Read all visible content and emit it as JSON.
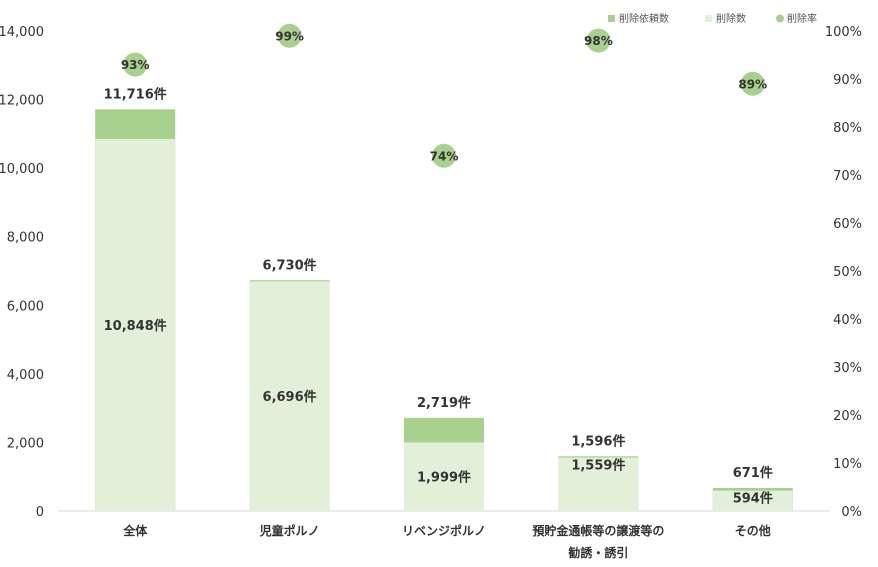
{
  "colors": {
    "requested": "#a9d18e",
    "deleted": "#e2f0d9",
    "rate": "#a9d18e",
    "axis": "#d9d9d9",
    "text": "#333333"
  },
  "chart_data": {
    "type": "bar",
    "categories": [
      {
        "lines": [
          "全体"
        ]
      },
      {
        "lines": [
          "児童ポルノ"
        ]
      },
      {
        "lines": [
          "リベンジポルノ"
        ]
      },
      {
        "lines": [
          "預貯金通帳等の譲渡等の",
          "勧誘・誘引"
        ]
      },
      {
        "lines": [
          "その他"
        ]
      }
    ],
    "series": [
      {
        "name": "削除依頼数",
        "axis": "left",
        "values": [
          11716,
          6730,
          2719,
          1596,
          671
        ],
        "labels": [
          "11,716件",
          "6,730件",
          "2,719件",
          "1,596件",
          "671件"
        ]
      },
      {
        "name": "削除数",
        "axis": "left",
        "values": [
          10848,
          6696,
          1999,
          1559,
          594
        ],
        "labels": [
          "10,848件",
          "6,696件",
          "1,999件",
          "1,559件",
          "594件"
        ]
      },
      {
        "name": "削除率",
        "axis": "right",
        "values": [
          93,
          99,
          74,
          98,
          89
        ],
        "labels": [
          "93%",
          "99%",
          "74%",
          "98%",
          "89%"
        ]
      }
    ],
    "y_left": {
      "min": 0,
      "max": 14000,
      "ticks": [
        "0",
        "2,000",
        "4,000",
        "6,000",
        "8,000",
        "10,000",
        "12,000",
        "14,000"
      ]
    },
    "y_right": {
      "min": 0,
      "max": 100,
      "ticks": [
        "0%",
        "10%",
        "20%",
        "30%",
        "40%",
        "50%",
        "60%",
        "70%",
        "80%",
        "90%",
        "100%"
      ]
    },
    "legend_position": "top-right",
    "grid": false
  }
}
